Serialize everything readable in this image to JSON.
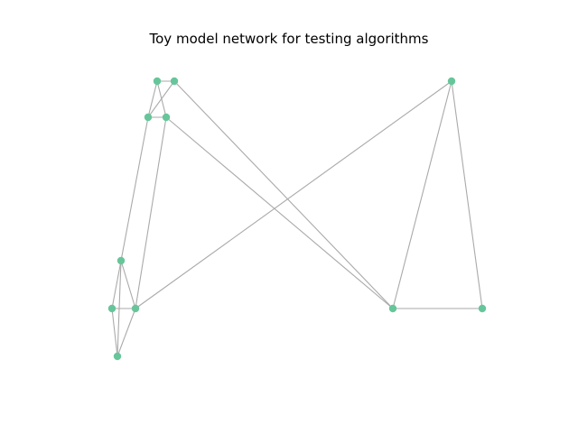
{
  "title": "Toy model network for testing algorithms",
  "colors": {
    "node": "#66c69a",
    "edge": "#aaaaaa",
    "background": "#ffffff"
  },
  "graph": {
    "nodes": [
      {
        "id": "n1"
      },
      {
        "id": "n2"
      },
      {
        "id": "n3"
      },
      {
        "id": "n4"
      },
      {
        "id": "n5"
      },
      {
        "id": "n6"
      },
      {
        "id": "n7"
      },
      {
        "id": "n8"
      },
      {
        "id": "n9"
      },
      {
        "id": "n10"
      },
      {
        "id": "n11"
      }
    ],
    "edges": [
      [
        "n1",
        "n2"
      ],
      [
        "n1",
        "n3"
      ],
      [
        "n1",
        "n4"
      ],
      [
        "n2",
        "n3"
      ],
      [
        "n3",
        "n4"
      ],
      [
        "n2",
        "n9"
      ],
      [
        "n4",
        "n9"
      ],
      [
        "n3",
        "n5"
      ],
      [
        "n4",
        "n7"
      ],
      [
        "n5",
        "n6"
      ],
      [
        "n5",
        "n7"
      ],
      [
        "n5",
        "n8"
      ],
      [
        "n6",
        "n7"
      ],
      [
        "n6",
        "n8"
      ],
      [
        "n7",
        "n8"
      ],
      [
        "n7",
        "n10"
      ],
      [
        "n9",
        "n10"
      ],
      [
        "n9",
        "n11"
      ],
      [
        "n10",
        "n11"
      ]
    ]
  }
}
